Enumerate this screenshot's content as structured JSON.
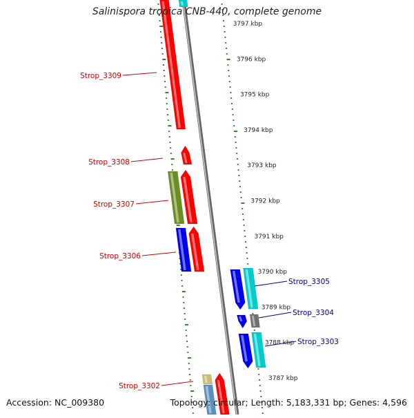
{
  "title": "Salinispora tropica CNB-440, complete genome",
  "footer": {
    "accession": "Accession: NC_009380",
    "topology": "Topology: circular; Length: 5,183,331 bp; Genes: 4,596"
  },
  "colors": {
    "red": "#ff0000",
    "blue": "#0000ee",
    "cyan": "#00cccc",
    "olive": "#6b8e23",
    "gray": "#707070",
    "khaki": "#c8bf7a",
    "steelblue": "#5b8fbf",
    "backbone": "#8a8a8a",
    "ticks": "#2e8b22",
    "label_left": "#cc0000",
    "label_right": "#00008b"
  },
  "scale": {
    "labels": [
      "3797 kbp",
      "3796 kbp",
      "3795 kbp",
      "3794 kbp",
      "3793 kbp",
      "3792 kbp",
      "3791 kbp",
      "3790 kbp",
      "3789 kbp",
      "3788 kbp",
      "3787 kbp"
    ]
  },
  "genes": [
    {
      "label": "Strop_3309",
      "side": "left"
    },
    {
      "label": "Strop_3308",
      "side": "left"
    },
    {
      "label": "Strop_3307",
      "side": "left"
    },
    {
      "label": "Strop_3306",
      "side": "left"
    },
    {
      "label": "Strop_3305",
      "side": "right"
    },
    {
      "label": "Strop_3304",
      "side": "right"
    },
    {
      "label": "Strop_3303",
      "side": "right"
    },
    {
      "label": "Strop_3302",
      "side": "left"
    }
  ]
}
